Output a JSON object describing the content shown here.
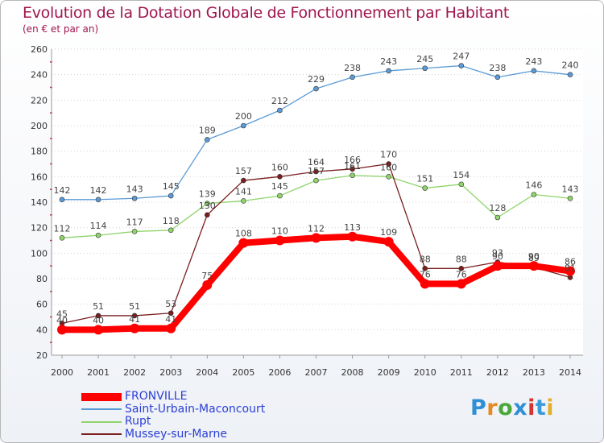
{
  "title": "Evolution de la Dotation Globale de Fonctionnement par Habitant",
  "subtitle": "(en € et par an)",
  "logo": {
    "text": "Proxiti",
    "colors": [
      "#2f8fd6",
      "#e48a22",
      "#4aa83a",
      "#2f8fd6",
      "#d6342f",
      "#3a9ad9",
      "#e0b02b"
    ]
  },
  "chart_data": {
    "type": "line",
    "title": "Evolution de la Dotation Globale de Fonctionnement par Habitant",
    "subtitle": "(en € et par an)",
    "xlabel": "",
    "ylabel": "",
    "categories": [
      "2000",
      "2001",
      "2002",
      "2003",
      "2004",
      "2005",
      "2006",
      "2007",
      "2008",
      "2009",
      "2010",
      "2011",
      "2012",
      "2013",
      "2014"
    ],
    "ylim": [
      20,
      260
    ],
    "yticks": [
      20,
      40,
      60,
      80,
      100,
      120,
      140,
      160,
      180,
      200,
      220,
      240,
      260
    ],
    "grid": "horizontal",
    "series": [
      {
        "name": "FRONVILLE",
        "color": "#ff0000",
        "values": [
          40,
          40,
          41,
          41,
          75,
          108,
          110,
          112,
          113,
          109,
          76,
          76,
          90,
          90,
          86
        ]
      },
      {
        "name": "Saint-Urbain-Maconcourt",
        "color": "#5b9bd5",
        "values": [
          142,
          142,
          143,
          145,
          189,
          200,
          212,
          229,
          238,
          243,
          245,
          247,
          238,
          243,
          240
        ]
      },
      {
        "name": "Rupt",
        "color": "#8fd46b",
        "values": [
          112,
          114,
          117,
          118,
          139,
          141,
          145,
          157,
          161,
          160,
          151,
          154,
          128,
          146,
          143
        ]
      },
      {
        "name": "Mussey-sur-Marne",
        "color": "#7a1e1e",
        "values": [
          45,
          51,
          51,
          53,
          130,
          157,
          160,
          164,
          166,
          170,
          88,
          88,
          93,
          89,
          81
        ]
      }
    ]
  }
}
